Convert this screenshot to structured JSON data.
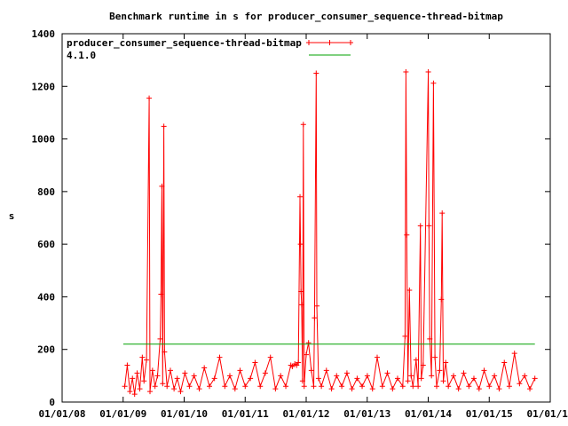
{
  "chart_data": {
    "type": "line",
    "title": "Benchmark runtime in s for producer_consumer_sequence-thread-bitmap",
    "xlabel": "",
    "ylabel": "s",
    "ylim": [
      0,
      1400
    ],
    "yticks": [
      "0",
      "200",
      "400",
      "600",
      "800",
      "1000",
      "1200",
      "1400"
    ],
    "xlim": [
      "2008-01-01",
      "2016-01-01"
    ],
    "xticks": [
      "01/01/08",
      "01/01/09",
      "01/01/10",
      "01/01/11",
      "01/01/12",
      "01/01/13",
      "01/01/14",
      "01/01/15",
      "01/01/16"
    ],
    "legend_position": "top-left",
    "grid": false,
    "series": [
      {
        "name": "producer_consumer_sequence-thread-bitmap",
        "color": "#ff0000",
        "marker": "plus",
        "points": [
          [
            "2009-01-10",
            60
          ],
          [
            "2009-01-25",
            140
          ],
          [
            "2009-02-10",
            40
          ],
          [
            "2009-02-25",
            90
          ],
          [
            "2009-03-10",
            30
          ],
          [
            "2009-03-25",
            110
          ],
          [
            "2009-04-10",
            50
          ],
          [
            "2009-04-25",
            170
          ],
          [
            "2009-05-05",
            80
          ],
          [
            "2009-05-20",
            160
          ],
          [
            "2009-06-05",
            1155
          ],
          [
            "2009-06-10",
            40
          ],
          [
            "2009-06-25",
            120
          ],
          [
            "2009-07-10",
            60
          ],
          [
            "2009-07-25",
            100
          ],
          [
            "2009-08-10",
            240
          ],
          [
            "2009-08-15",
            410
          ],
          [
            "2009-08-20",
            820
          ],
          [
            "2009-08-25",
            70
          ],
          [
            "2009-09-01",
            1048
          ],
          [
            "2009-09-05",
            190
          ],
          [
            "2009-09-20",
            60
          ],
          [
            "2009-10-10",
            120
          ],
          [
            "2009-11-01",
            50
          ],
          [
            "2009-11-20",
            90
          ],
          [
            "2009-12-10",
            40
          ],
          [
            "2010-01-05",
            110
          ],
          [
            "2010-02-01",
            60
          ],
          [
            "2010-03-01",
            100
          ],
          [
            "2010-04-01",
            50
          ],
          [
            "2010-05-01",
            130
          ],
          [
            "2010-06-01",
            60
          ],
          [
            "2010-07-01",
            90
          ],
          [
            "2010-08-01",
            170
          ],
          [
            "2010-09-01",
            60
          ],
          [
            "2010-10-01",
            100
          ],
          [
            "2010-11-01",
            50
          ],
          [
            "2010-12-01",
            120
          ],
          [
            "2011-01-01",
            60
          ],
          [
            "2011-02-01",
            90
          ],
          [
            "2011-03-01",
            150
          ],
          [
            "2011-04-01",
            60
          ],
          [
            "2011-05-01",
            110
          ],
          [
            "2011-06-01",
            170
          ],
          [
            "2011-07-01",
            50
          ],
          [
            "2011-08-01",
            100
          ],
          [
            "2011-09-01",
            60
          ],
          [
            "2011-10-01",
            140
          ],
          [
            "2011-10-10",
            135
          ],
          [
            "2011-10-25",
            145
          ],
          [
            "2011-11-05",
            140
          ],
          [
            "2011-11-15",
            150
          ],
          [
            "2011-11-25",
            780
          ],
          [
            "2011-11-28",
            600
          ],
          [
            "2011-12-01",
            420
          ],
          [
            "2011-12-05",
            370
          ],
          [
            "2011-12-10",
            80
          ],
          [
            "2011-12-15",
            1055
          ],
          [
            "2011-12-20",
            60
          ],
          [
            "2012-01-01",
            180
          ],
          [
            "2012-01-15",
            225
          ],
          [
            "2012-02-01",
            120
          ],
          [
            "2012-02-15",
            60
          ],
          [
            "2012-02-20",
            320
          ],
          [
            "2012-03-01",
            1250
          ],
          [
            "2012-03-05",
            365
          ],
          [
            "2012-03-15",
            90
          ],
          [
            "2012-04-01",
            60
          ],
          [
            "2012-05-01",
            120
          ],
          [
            "2012-06-01",
            50
          ],
          [
            "2012-07-01",
            100
          ],
          [
            "2012-08-01",
            60
          ],
          [
            "2012-09-01",
            110
          ],
          [
            "2012-10-01",
            50
          ],
          [
            "2012-11-01",
            90
          ],
          [
            "2012-12-01",
            60
          ],
          [
            "2013-01-01",
            100
          ],
          [
            "2013-02-01",
            50
          ],
          [
            "2013-03-01",
            170
          ],
          [
            "2013-04-01",
            60
          ],
          [
            "2013-05-01",
            110
          ],
          [
            "2013-06-01",
            50
          ],
          [
            "2013-07-01",
            90
          ],
          [
            "2013-08-01",
            60
          ],
          [
            "2013-08-15",
            250
          ],
          [
            "2013-08-20",
            1255
          ],
          [
            "2013-08-25",
            635
          ],
          [
            "2013-09-01",
            80
          ],
          [
            "2013-09-10",
            425
          ],
          [
            "2013-09-20",
            100
          ],
          [
            "2013-10-01",
            60
          ],
          [
            "2013-10-20",
            160
          ],
          [
            "2013-11-01",
            60
          ],
          [
            "2013-11-15",
            670
          ],
          [
            "2013-11-20",
            90
          ],
          [
            "2013-12-01",
            140
          ],
          [
            "2014-01-01",
            1255
          ],
          [
            "2014-01-05",
            670
          ],
          [
            "2014-01-10",
            240
          ],
          [
            "2014-01-20",
            100
          ],
          [
            "2014-02-01",
            1212
          ],
          [
            "2014-02-10",
            170
          ],
          [
            "2014-02-20",
            60
          ],
          [
            "2014-03-10",
            120
          ],
          [
            "2014-03-20",
            390
          ],
          [
            "2014-03-25",
            718
          ],
          [
            "2014-04-01",
            80
          ],
          [
            "2014-04-15",
            150
          ],
          [
            "2014-05-01",
            60
          ],
          [
            "2014-06-01",
            100
          ],
          [
            "2014-07-01",
            50
          ],
          [
            "2014-08-01",
            110
          ],
          [
            "2014-09-01",
            60
          ],
          [
            "2014-10-01",
            90
          ],
          [
            "2014-11-01",
            50
          ],
          [
            "2014-12-01",
            120
          ],
          [
            "2015-01-01",
            60
          ],
          [
            "2015-02-01",
            100
          ],
          [
            "2015-03-01",
            50
          ],
          [
            "2015-04-01",
            150
          ],
          [
            "2015-05-01",
            60
          ],
          [
            "2015-06-01",
            185
          ],
          [
            "2015-07-01",
            70
          ],
          [
            "2015-08-01",
            100
          ],
          [
            "2015-09-01",
            50
          ],
          [
            "2015-10-01",
            90
          ]
        ]
      },
      {
        "name": "4.1.0",
        "color": "#00a000",
        "marker": "none",
        "points": [
          [
            "2009-01-01",
            220
          ],
          [
            "2015-10-01",
            220
          ]
        ]
      }
    ]
  }
}
